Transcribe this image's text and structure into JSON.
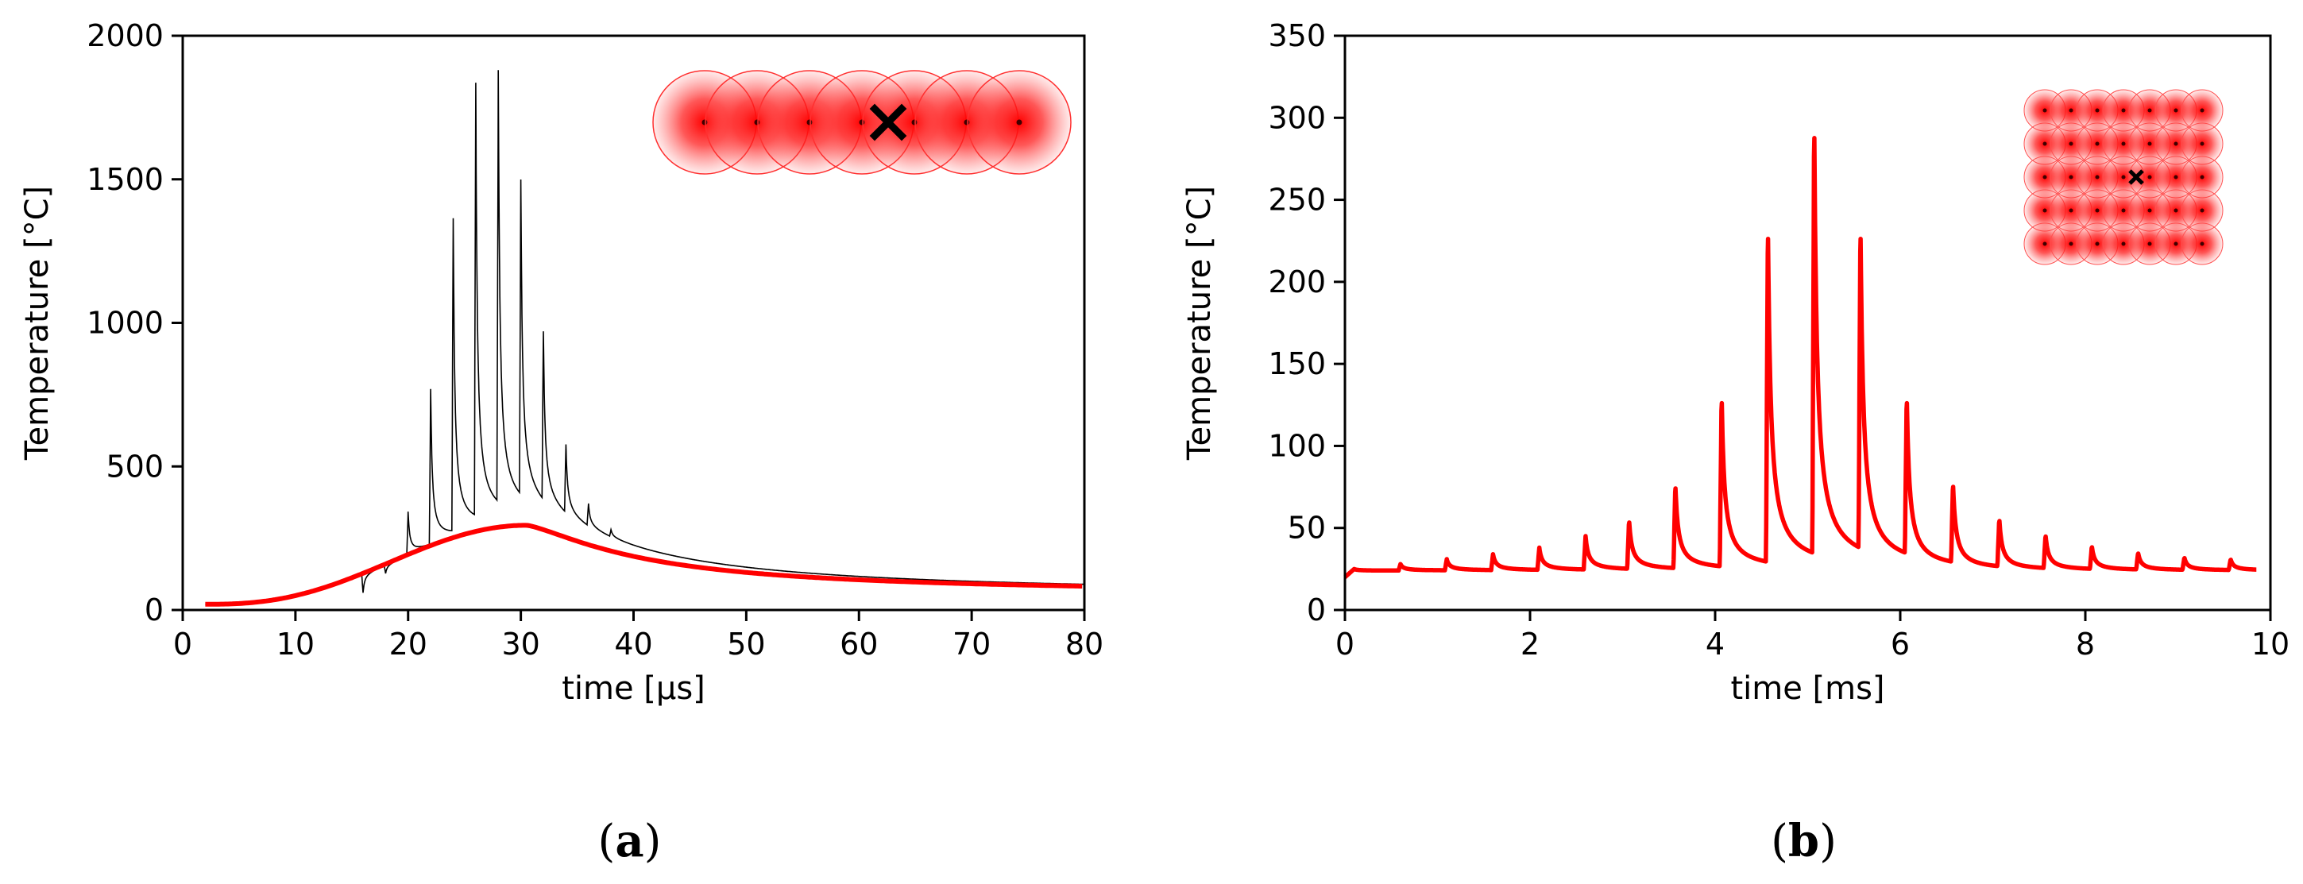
{
  "chart_data": [
    {
      "type": "line",
      "panel_label": "a",
      "xlabel": "time [µs]",
      "ylabel": "Temperature [°C]",
      "xlim": [
        0,
        80
      ],
      "ylim": [
        0,
        2000
      ],
      "xticks": [
        0,
        10,
        20,
        30,
        40,
        50,
        60,
        70,
        80
      ],
      "yticks": [
        0,
        500,
        1000,
        1500,
        2000
      ],
      "grid": false,
      "colors": {
        "thin": "#000000",
        "thick": "#ff0000"
      },
      "baseline": {
        "start_time": 2,
        "base_temp": 20,
        "peak_time": 30.5,
        "peak_temp": 295,
        "end_temp": 55
      },
      "pulses": [
        {
          "t": 16.0,
          "peak": 60
        },
        {
          "t": 18.0,
          "peak": 130
        },
        {
          "t": 20.0,
          "peak": 345
        },
        {
          "t": 22.0,
          "peak": 765
        },
        {
          "t": 24.0,
          "peak": 1340
        },
        {
          "t": 26.0,
          "peak": 1780
        },
        {
          "t": 28.0,
          "peak": 1790
        },
        {
          "t": 30.0,
          "peak": 1390
        },
        {
          "t": 32.0,
          "peak": 865
        },
        {
          "t": 34.0,
          "peak": 490
        },
        {
          "t": 36.0,
          "peak": 305
        },
        {
          "t": 38.0,
          "peak": 230
        }
      ],
      "inset": {
        "description": "row of 7 spots",
        "rows": 1,
        "cols": 7,
        "marker_col": 4
      }
    },
    {
      "type": "line",
      "panel_label": "b",
      "xlabel": "time [ms]",
      "ylabel": "Temperature [°C]",
      "xlim": [
        0,
        10
      ],
      "ylim": [
        0,
        350
      ],
      "xticks": [
        0,
        2,
        4,
        6,
        8,
        10
      ],
      "yticks": [
        0,
        50,
        100,
        150,
        200,
        250,
        300,
        350
      ],
      "grid": false,
      "colors": {
        "line": "#ff0000"
      },
      "baseline": {
        "base_temp": 20,
        "floor_temp": 24,
        "end_time": 9.85
      },
      "pulses": [
        {
          "t": 0.1,
          "peak": 25
        },
        {
          "t": 0.6,
          "peak": 28
        },
        {
          "t": 1.1,
          "peak": 31
        },
        {
          "t": 1.6,
          "peak": 34
        },
        {
          "t": 2.1,
          "peak": 38
        },
        {
          "t": 2.6,
          "peak": 45
        },
        {
          "t": 3.07,
          "peak": 55
        },
        {
          "t": 3.57,
          "peak": 77
        },
        {
          "t": 4.07,
          "peak": 132
        },
        {
          "t": 4.57,
          "peak": 238
        },
        {
          "t": 5.07,
          "peak": 303
        },
        {
          "t": 5.57,
          "peak": 238
        },
        {
          "t": 6.07,
          "peak": 132
        },
        {
          "t": 6.57,
          "peak": 78
        },
        {
          "t": 7.07,
          "peak": 56
        },
        {
          "t": 7.57,
          "peak": 46
        },
        {
          "t": 8.07,
          "peak": 39
        },
        {
          "t": 8.57,
          "peak": 35
        },
        {
          "t": 9.07,
          "peak": 32
        },
        {
          "t": 9.57,
          "peak": 31
        }
      ],
      "inset": {
        "description": "grid of 7 x 5 spots",
        "rows": 5,
        "cols": 7,
        "marker_row": 2,
        "marker_col": 3
      }
    }
  ]
}
